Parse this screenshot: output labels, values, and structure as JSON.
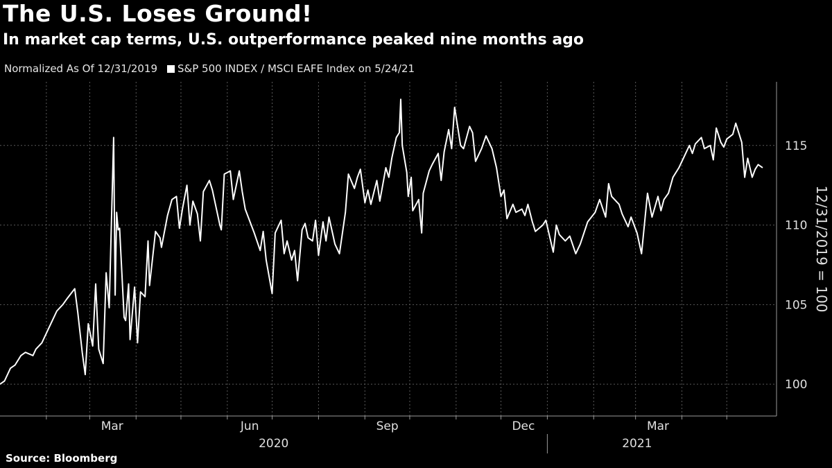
{
  "header": {
    "title": "The U.S. Loses Ground!",
    "subtitle": "In market cap terms, U.S. outperformance peaked nine months ago"
  },
  "legend": {
    "note": "Normalized As Of 12/31/2019",
    "series_label": "S&P 500 INDEX / MSCI EAFE Index on 5/24/21"
  },
  "footer": {
    "source": "Source: Bloomberg"
  },
  "colors": {
    "background": "#000000",
    "line": "#ffffff",
    "grid": "#5a5a5a"
  },
  "chart_data": {
    "type": "line",
    "ylabel": "12/31/2019 = 100",
    "ylim": [
      98,
      119
    ],
    "yticks": [
      100,
      105,
      110,
      115
    ],
    "y_axis_position": "right",
    "grid": "horizontal dotted",
    "x_range": [
      "2019-12-31",
      "2021-05-24"
    ],
    "month_ticks": [
      "2020-01-31",
      "2020-02-29",
      "2020-03-31",
      "2020-04-30",
      "2020-05-31",
      "2020-06-30",
      "2020-07-31",
      "2020-08-31",
      "2020-09-30",
      "2020-10-31",
      "2020-11-30",
      "2020-12-31",
      "2021-01-31",
      "2021-02-28",
      "2021-03-31",
      "2021-04-30"
    ],
    "month_labels": [
      {
        "label": "Mar",
        "date": "2020-03-15"
      },
      {
        "label": "Jun",
        "date": "2020-06-15"
      },
      {
        "label": "Sep",
        "date": "2020-09-15"
      },
      {
        "label": "Dec",
        "date": "2020-12-15"
      },
      {
        "label": "Mar",
        "date": "2021-03-15"
      }
    ],
    "year_labels": [
      {
        "label": "2020",
        "date": "2020-07-01"
      },
      {
        "label": "2021",
        "date": "2021-03-01"
      }
    ],
    "year_divider": "2020-12-31",
    "series": [
      {
        "name": "S&P 500 INDEX / MSCI EAFE Index",
        "points": [
          [
            "2019-12-31",
            100.0
          ],
          [
            "2020-01-03",
            100.2
          ],
          [
            "2020-01-07",
            101.0
          ],
          [
            "2020-01-10",
            101.2
          ],
          [
            "2020-01-14",
            101.8
          ],
          [
            "2020-01-17",
            102.0
          ],
          [
            "2020-01-22",
            101.8
          ],
          [
            "2020-01-24",
            102.2
          ],
          [
            "2020-01-28",
            102.6
          ],
          [
            "2020-01-31",
            103.2
          ],
          [
            "2020-02-04",
            104.0
          ],
          [
            "2020-02-07",
            104.6
          ],
          [
            "2020-02-11",
            105.0
          ],
          [
            "2020-02-14",
            105.4
          ],
          [
            "2020-02-19",
            106.0
          ],
          [
            "2020-02-21",
            104.5
          ],
          [
            "2020-02-24",
            102.0
          ],
          [
            "2020-02-26",
            100.6
          ],
          [
            "2020-02-28",
            103.8
          ],
          [
            "2020-03-02",
            102.4
          ],
          [
            "2020-03-04",
            106.3
          ],
          [
            "2020-03-06",
            102.2
          ],
          [
            "2020-03-09",
            101.3
          ],
          [
            "2020-03-11",
            107.0
          ],
          [
            "2020-03-13",
            104.8
          ],
          [
            "2020-03-16",
            115.5
          ],
          [
            "2020-03-17",
            105.6
          ],
          [
            "2020-03-18",
            110.8
          ],
          [
            "2020-03-19",
            109.7
          ],
          [
            "2020-03-20",
            109.8
          ],
          [
            "2020-03-23",
            104.2
          ],
          [
            "2020-03-24",
            104.0
          ],
          [
            "2020-03-26",
            106.3
          ],
          [
            "2020-03-27",
            102.8
          ],
          [
            "2020-03-30",
            106.1
          ],
          [
            "2020-04-01",
            102.6
          ],
          [
            "2020-04-03",
            105.8
          ],
          [
            "2020-04-06",
            105.5
          ],
          [
            "2020-04-08",
            109.0
          ],
          [
            "2020-04-09",
            106.2
          ],
          [
            "2020-04-13",
            109.6
          ],
          [
            "2020-04-16",
            109.2
          ],
          [
            "2020-04-17",
            108.6
          ],
          [
            "2020-04-21",
            110.6
          ],
          [
            "2020-04-24",
            111.6
          ],
          [
            "2020-04-27",
            111.8
          ],
          [
            "2020-04-29",
            109.8
          ],
          [
            "2020-05-01",
            111.0
          ],
          [
            "2020-05-04",
            112.5
          ],
          [
            "2020-05-06",
            110.0
          ],
          [
            "2020-05-08",
            111.5
          ],
          [
            "2020-05-11",
            110.7
          ],
          [
            "2020-05-13",
            109.0
          ],
          [
            "2020-05-15",
            112.1
          ],
          [
            "2020-05-19",
            112.8
          ],
          [
            "2020-05-21",
            112.2
          ],
          [
            "2020-05-26",
            110.0
          ],
          [
            "2020-05-27",
            109.7
          ],
          [
            "2020-05-29",
            113.2
          ],
          [
            "2020-06-02",
            113.4
          ],
          [
            "2020-06-04",
            111.6
          ],
          [
            "2020-06-08",
            113.4
          ],
          [
            "2020-06-10",
            112.1
          ],
          [
            "2020-06-12",
            111.0
          ],
          [
            "2020-06-16",
            110.0
          ],
          [
            "2020-06-18",
            109.5
          ],
          [
            "2020-06-22",
            108.4
          ],
          [
            "2020-06-24",
            109.6
          ],
          [
            "2020-06-26",
            107.8
          ],
          [
            "2020-06-30",
            105.7
          ],
          [
            "2020-07-02",
            109.5
          ],
          [
            "2020-07-06",
            110.3
          ],
          [
            "2020-07-08",
            108.2
          ],
          [
            "2020-07-10",
            109.0
          ],
          [
            "2020-07-13",
            107.8
          ],
          [
            "2020-07-15",
            108.4
          ],
          [
            "2020-07-17",
            106.5
          ],
          [
            "2020-07-20",
            109.7
          ],
          [
            "2020-07-22",
            110.1
          ],
          [
            "2020-07-24",
            109.2
          ],
          [
            "2020-07-27",
            109.0
          ],
          [
            "2020-07-29",
            110.3
          ],
          [
            "2020-07-31",
            108.1
          ],
          [
            "2020-08-03",
            110.2
          ],
          [
            "2020-08-05",
            109.0
          ],
          [
            "2020-08-07",
            110.5
          ],
          [
            "2020-08-11",
            108.8
          ],
          [
            "2020-08-14",
            108.2
          ],
          [
            "2020-08-18",
            110.8
          ],
          [
            "2020-08-20",
            113.2
          ],
          [
            "2020-08-24",
            112.3
          ],
          [
            "2020-08-26",
            113.0
          ],
          [
            "2020-08-28",
            113.5
          ],
          [
            "2020-08-31",
            111.4
          ],
          [
            "2020-09-02",
            112.2
          ],
          [
            "2020-09-04",
            111.3
          ],
          [
            "2020-09-08",
            112.8
          ],
          [
            "2020-09-10",
            111.5
          ],
          [
            "2020-09-14",
            113.6
          ],
          [
            "2020-09-16",
            113.0
          ],
          [
            "2020-09-18",
            114.2
          ],
          [
            "2020-09-21",
            115.5
          ],
          [
            "2020-09-23",
            115.8
          ],
          [
            "2020-09-24",
            117.9
          ],
          [
            "2020-09-25",
            115.0
          ],
          [
            "2020-09-28",
            113.3
          ],
          [
            "2020-09-29",
            111.8
          ],
          [
            "2020-10-01",
            113.0
          ],
          [
            "2020-10-02",
            110.9
          ],
          [
            "2020-10-06",
            111.6
          ],
          [
            "2020-10-08",
            109.5
          ],
          [
            "2020-10-09",
            112.0
          ],
          [
            "2020-10-13",
            113.4
          ],
          [
            "2020-10-15",
            113.8
          ],
          [
            "2020-10-19",
            114.5
          ],
          [
            "2020-10-21",
            112.8
          ],
          [
            "2020-10-23",
            114.6
          ],
          [
            "2020-10-26",
            116.0
          ],
          [
            "2020-10-28",
            114.8
          ],
          [
            "2020-10-30",
            117.4
          ],
          [
            "2020-11-03",
            115.0
          ],
          [
            "2020-11-05",
            114.8
          ],
          [
            "2020-11-09",
            116.2
          ],
          [
            "2020-11-11",
            115.8
          ],
          [
            "2020-11-13",
            114.0
          ],
          [
            "2020-11-17",
            114.8
          ],
          [
            "2020-11-20",
            115.6
          ],
          [
            "2020-11-24",
            114.8
          ],
          [
            "2020-11-27",
            113.6
          ],
          [
            "2020-11-30",
            111.8
          ],
          [
            "2020-12-02",
            112.2
          ],
          [
            "2020-12-04",
            110.4
          ],
          [
            "2020-12-08",
            111.3
          ],
          [
            "2020-12-10",
            110.8
          ],
          [
            "2020-12-14",
            111.0
          ],
          [
            "2020-12-16",
            110.6
          ],
          [
            "2020-12-18",
            111.3
          ],
          [
            "2020-12-21",
            110.2
          ],
          [
            "2020-12-23",
            109.6
          ],
          [
            "2020-12-28",
            110.0
          ],
          [
            "2020-12-30",
            110.3
          ],
          [
            "2021-01-04",
            108.3
          ],
          [
            "2021-01-06",
            110.0
          ],
          [
            "2021-01-08",
            109.4
          ],
          [
            "2021-01-12",
            109.0
          ],
          [
            "2021-01-15",
            109.3
          ],
          [
            "2021-01-19",
            108.2
          ],
          [
            "2021-01-22",
            108.8
          ],
          [
            "2021-01-27",
            110.2
          ],
          [
            "2021-02-01",
            110.8
          ],
          [
            "2021-02-04",
            111.6
          ],
          [
            "2021-02-08",
            110.5
          ],
          [
            "2021-02-10",
            112.6
          ],
          [
            "2021-02-12",
            111.8
          ],
          [
            "2021-02-17",
            111.3
          ],
          [
            "2021-02-19",
            110.7
          ],
          [
            "2021-02-23",
            109.9
          ],
          [
            "2021-02-25",
            110.5
          ],
          [
            "2021-03-01",
            109.5
          ],
          [
            "2021-03-04",
            108.2
          ],
          [
            "2021-03-08",
            112.0
          ],
          [
            "2021-03-11",
            110.5
          ],
          [
            "2021-03-15",
            111.8
          ],
          [
            "2021-03-17",
            110.9
          ],
          [
            "2021-03-19",
            111.6
          ],
          [
            "2021-03-22",
            112.0
          ],
          [
            "2021-03-25",
            113.0
          ],
          [
            "2021-03-29",
            113.6
          ],
          [
            "2021-04-01",
            114.2
          ],
          [
            "2021-04-05",
            115.0
          ],
          [
            "2021-04-07",
            114.5
          ],
          [
            "2021-04-09",
            115.1
          ],
          [
            "2021-04-13",
            115.5
          ],
          [
            "2021-04-15",
            114.8
          ],
          [
            "2021-04-19",
            115.0
          ],
          [
            "2021-04-21",
            114.1
          ],
          [
            "2021-04-23",
            116.1
          ],
          [
            "2021-04-26",
            115.2
          ],
          [
            "2021-04-28",
            114.9
          ],
          [
            "2021-04-30",
            115.4
          ],
          [
            "2021-05-04",
            115.7
          ],
          [
            "2021-05-06",
            116.4
          ],
          [
            "2021-05-10",
            115.2
          ],
          [
            "2021-05-12",
            113.0
          ],
          [
            "2021-05-14",
            114.2
          ],
          [
            "2021-05-17",
            113.0
          ],
          [
            "2021-05-19",
            113.5
          ],
          [
            "2021-05-21",
            113.8
          ],
          [
            "2021-05-24",
            113.6
          ]
        ]
      }
    ]
  }
}
